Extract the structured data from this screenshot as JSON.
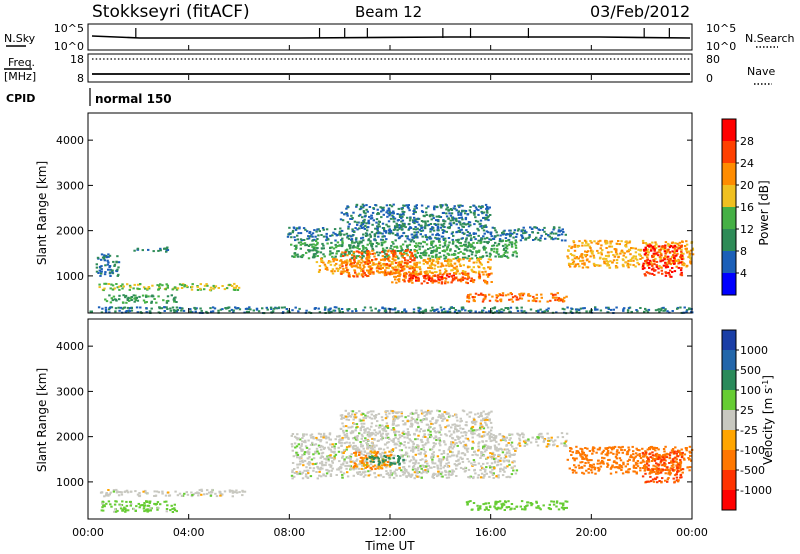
{
  "header": {
    "station": "Stokkseyri (fitACF)",
    "beam": "Beam 12",
    "date": "03/Feb/2012"
  },
  "top_panels": {
    "nsky_label": "N.Sky",
    "nsky_ticks": [
      "10^5",
      "10^0"
    ],
    "nsearch_label": "N.Search",
    "nsearch_ticks": [
      "10^5",
      "10^0"
    ],
    "freq_label": "Freq.",
    "freq_unit": "[MHz]",
    "freq_ticks": [
      "18",
      "8"
    ],
    "nave_label": "Nave",
    "nave_ticks": [
      "80",
      "0"
    ],
    "cpid_label": "CPID",
    "cpid_value": "normal 150"
  },
  "axes": {
    "xlabel": "Time UT",
    "ylabel": "Slant Range [km]",
    "x_ticks": [
      "00:00",
      "04:00",
      "08:00",
      "12:00",
      "16:00",
      "20:00",
      "00:00"
    ],
    "x_range_hours": [
      0,
      24
    ],
    "y_ticks": [
      "1000",
      "2000",
      "3000",
      "4000"
    ],
    "y_range_km": [
      180,
      4600
    ]
  },
  "colorbars": {
    "power": {
      "label": "Power [dB]",
      "ticks": [
        "4",
        "8",
        "12",
        "16",
        "20",
        "24",
        "28"
      ],
      "colors": [
        "#0000ff",
        "#1b5fb8",
        "#2e8b57",
        "#45b045",
        "#f0c020",
        "#ff8c00",
        "#ff4000",
        "#ff0000"
      ]
    },
    "velocity": {
      "label": "Velocity [m s",
      "label_sup": "-1",
      "label_end": "]",
      "ticks": [
        "1000",
        "500",
        "100",
        "25",
        "-25",
        "-100",
        "-500",
        "-1000"
      ],
      "colors": [
        "#1a3ea6",
        "#2266aa",
        "#2a8a5a",
        "#66cc33",
        "#c8c8c0",
        "#ffa500",
        "#ff7700",
        "#ff3300",
        "#ff0000"
      ]
    }
  },
  "chart_data": [
    {
      "type": "heatmap",
      "title": "Power",
      "xlabel": "Time UT",
      "ylabel": "Slant Range [km]",
      "units": "dB",
      "regions": [
        {
          "t0": 0.4,
          "t1": 6.2,
          "r0": 700,
          "r1": 850,
          "level": 16
        },
        {
          "t0": 0.6,
          "t1": 3.5,
          "r0": 420,
          "r1": 600,
          "level": 12
        },
        {
          "t0": 1.8,
          "t1": 3.2,
          "r0": 1550,
          "r1": 1650,
          "level": 8
        },
        {
          "t0": 0.3,
          "t1": 1.2,
          "r0": 1000,
          "r1": 1500,
          "level": 8
        },
        {
          "t0": 7.9,
          "t1": 19.0,
          "r0": 1800,
          "r1": 2100,
          "level": 8
        },
        {
          "t0": 8.0,
          "t1": 17.0,
          "r0": 1400,
          "r1": 1800,
          "level": 12
        },
        {
          "t0": 9.0,
          "t1": 16.0,
          "r0": 1050,
          "r1": 1400,
          "level": 20
        },
        {
          "t0": 10.0,
          "t1": 13.0,
          "r0": 1000,
          "r1": 1600,
          "level": 24
        },
        {
          "t0": 12.0,
          "t1": 16.0,
          "r0": 850,
          "r1": 1100,
          "level": 24
        },
        {
          "t0": 12.5,
          "t1": 14.5,
          "r0": 900,
          "r1": 1050,
          "level": 28
        },
        {
          "t0": 15.0,
          "t1": 19.0,
          "r0": 450,
          "r1": 650,
          "level": 24
        },
        {
          "t0": 19.0,
          "t1": 24.0,
          "r0": 1200,
          "r1": 1800,
          "level": 20
        },
        {
          "t0": 22.0,
          "t1": 23.6,
          "r0": 1000,
          "r1": 1700,
          "level": 28
        },
        {
          "t0": 0.0,
          "t1": 24.0,
          "r0": 200,
          "r1": 330,
          "level": 8
        },
        {
          "t0": 10.0,
          "t1": 16.0,
          "r0": 2100,
          "r1": 2600,
          "level": 8
        }
      ]
    },
    {
      "type": "heatmap",
      "title": "Velocity",
      "xlabel": "Time UT",
      "ylabel": "Slant Range [km]",
      "units": "m s-1",
      "regions": [
        {
          "t0": 0.4,
          "t1": 6.2,
          "r0": 700,
          "r1": 850,
          "level": 0
        },
        {
          "t0": 0.5,
          "t1": 3.5,
          "r0": 350,
          "r1": 600,
          "level": 50
        },
        {
          "t0": 8.0,
          "t1": 19.0,
          "r0": 1800,
          "r1": 2100,
          "level": 0
        },
        {
          "t0": 8.0,
          "t1": 17.0,
          "r0": 1100,
          "r1": 1800,
          "level": 0
        },
        {
          "t0": 10.5,
          "t1": 12.0,
          "r0": 1300,
          "r1": 1700,
          "level": -100
        },
        {
          "t0": 11.0,
          "t1": 12.5,
          "r0": 1400,
          "r1": 1600,
          "level": 300
        },
        {
          "t0": 15.0,
          "t1": 19.0,
          "r0": 400,
          "r1": 600,
          "level": 60
        },
        {
          "t0": 19.0,
          "t1": 24.0,
          "r0": 1200,
          "r1": 1800,
          "level": -300
        },
        {
          "t0": 22.0,
          "t1": 23.6,
          "r0": 1000,
          "r1": 1700,
          "level": -500
        },
        {
          "t0": 10.0,
          "t1": 16.0,
          "r0": 2100,
          "r1": 2600,
          "level": 0
        }
      ]
    }
  ]
}
